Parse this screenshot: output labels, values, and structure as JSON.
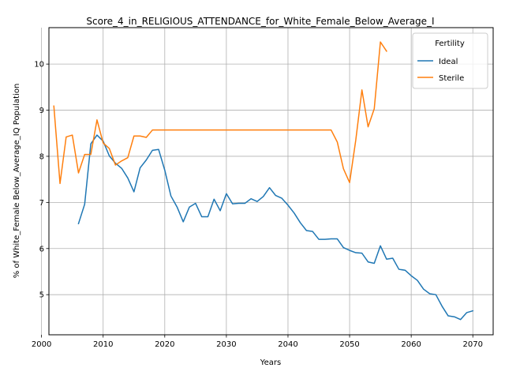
{
  "chart_data": {
    "type": "line",
    "title": "Score_4_in_RELIGIOUS_ATTENDANCE_for_White_Female_Below_Average_I",
    "xlabel": "Years",
    "ylabel": "% of White_Female Below_Average_IQ Population",
    "xlim": [
      2001.2,
      2073.3
    ],
    "ylim": [
      4.13,
      10.79
    ],
    "xticks": [
      2000,
      2010,
      2020,
      2030,
      2040,
      2050,
      2060,
      2070
    ],
    "yticks": [
      5,
      6,
      7,
      8,
      9,
      10
    ],
    "grid": true,
    "legend": {
      "title": "Fertility",
      "placement": "top-right"
    },
    "series": [
      {
        "name": "Ideal",
        "color": "#1f77b4",
        "x": [
          2006,
          2007,
          2008,
          2009,
          2010,
          2011,
          2012,
          2013,
          2014,
          2015,
          2016,
          2017,
          2018,
          2019,
          2020,
          2021,
          2022,
          2023,
          2024,
          2025,
          2026,
          2027,
          2028,
          2029,
          2030,
          2031,
          2032,
          2033,
          2034,
          2035,
          2036,
          2037,
          2038,
          2039,
          2040,
          2041,
          2042,
          2043,
          2044,
          2045,
          2046,
          2047,
          2048,
          2049,
          2050,
          2051,
          2052,
          2053,
          2054,
          2055,
          2056,
          2057,
          2058,
          2059,
          2060,
          2061,
          2062,
          2063,
          2064,
          2065,
          2066,
          2067,
          2068,
          2069,
          2070
        ],
        "y": [
          6.54,
          6.96,
          8.27,
          8.46,
          8.33,
          8.01,
          7.85,
          7.74,
          7.53,
          7.23,
          7.75,
          7.92,
          8.13,
          8.15,
          7.7,
          7.14,
          6.9,
          6.58,
          6.9,
          6.98,
          6.69,
          6.69,
          7.07,
          6.82,
          7.19,
          6.97,
          6.98,
          6.98,
          7.08,
          7.02,
          7.13,
          7.32,
          7.15,
          7.09,
          6.94,
          6.77,
          6.56,
          6.39,
          6.37,
          6.2,
          6.2,
          6.21,
          6.21,
          6.02,
          5.96,
          5.91,
          5.9,
          5.71,
          5.68,
          6.06,
          5.77,
          5.79,
          5.55,
          5.53,
          5.41,
          5.31,
          5.12,
          5.02,
          5.0,
          4.75,
          4.54,
          4.52,
          4.46,
          4.61,
          4.65
        ]
      },
      {
        "name": "Sterile",
        "color": "#ff7f0e",
        "x": [
          2002,
          2003,
          2004,
          2005,
          2006,
          2007,
          2008,
          2009,
          2010,
          2011,
          2012,
          2013,
          2014,
          2015,
          2016,
          2017,
          2018,
          2019,
          2020,
          2021,
          2022,
          2023,
          2024,
          2025,
          2026,
          2027,
          2028,
          2029,
          2030,
          2031,
          2032,
          2033,
          2034,
          2035,
          2036,
          2037,
          2038,
          2039,
          2040,
          2041,
          2042,
          2043,
          2044,
          2045,
          2046,
          2047,
          2048,
          2049,
          2050,
          2051,
          2052,
          2053,
          2054,
          2055,
          2056
        ],
        "y": [
          9.09,
          7.41,
          8.42,
          8.46,
          7.64,
          8.04,
          8.04,
          8.79,
          8.29,
          8.17,
          7.81,
          7.9,
          7.97,
          8.44,
          8.44,
          8.41,
          8.57,
          8.57,
          8.57,
          8.57,
          8.57,
          8.57,
          8.57,
          8.57,
          8.57,
          8.57,
          8.57,
          8.57,
          8.57,
          8.57,
          8.57,
          8.57,
          8.57,
          8.57,
          8.57,
          8.57,
          8.57,
          8.57,
          8.57,
          8.57,
          8.57,
          8.57,
          8.57,
          8.57,
          8.57,
          8.57,
          8.31,
          7.73,
          7.43,
          8.35,
          9.44,
          8.64,
          9.03,
          10.48,
          10.28
        ]
      }
    ]
  }
}
